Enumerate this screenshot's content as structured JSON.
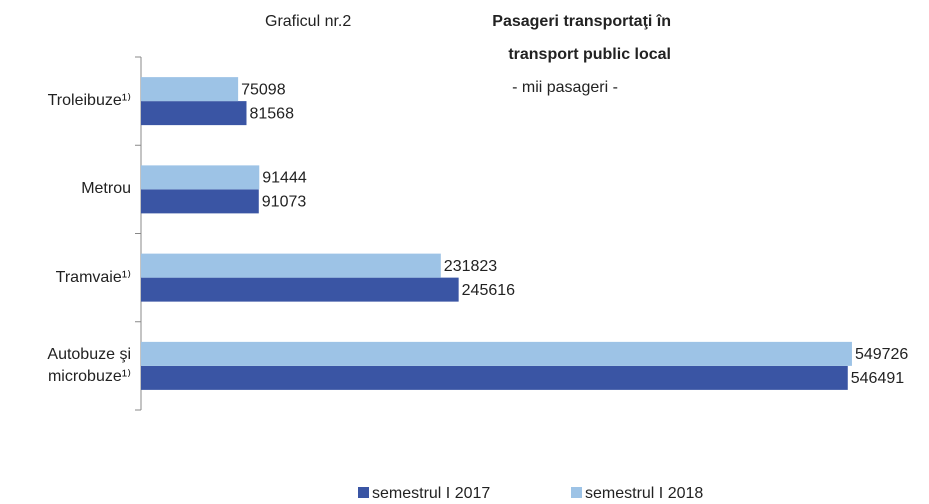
{
  "chart_data": {
    "type": "bar",
    "orientation": "horizontal",
    "title": "Graficul nr.2",
    "title_bold": [
      "Pasageri transportaţi în",
      "transport public local"
    ],
    "subtitle": "- mii pasageri -",
    "categories": [
      "Troleibuze¹⁾",
      "Metrou",
      "Tramvaie¹⁾",
      "Autobuze şi microbuze¹⁾"
    ],
    "series": [
      {
        "name": "semestrul I 2017",
        "color": "#3a55a4",
        "values": [
          81568,
          91073,
          245616,
          546491
        ]
      },
      {
        "name": "semestrul I 2018",
        "color": "#9dc3e6",
        "values": [
          75098,
          91444,
          231823,
          549726
        ]
      }
    ],
    "xlim": [
      0,
      550000
    ],
    "legend": "bottom"
  }
}
